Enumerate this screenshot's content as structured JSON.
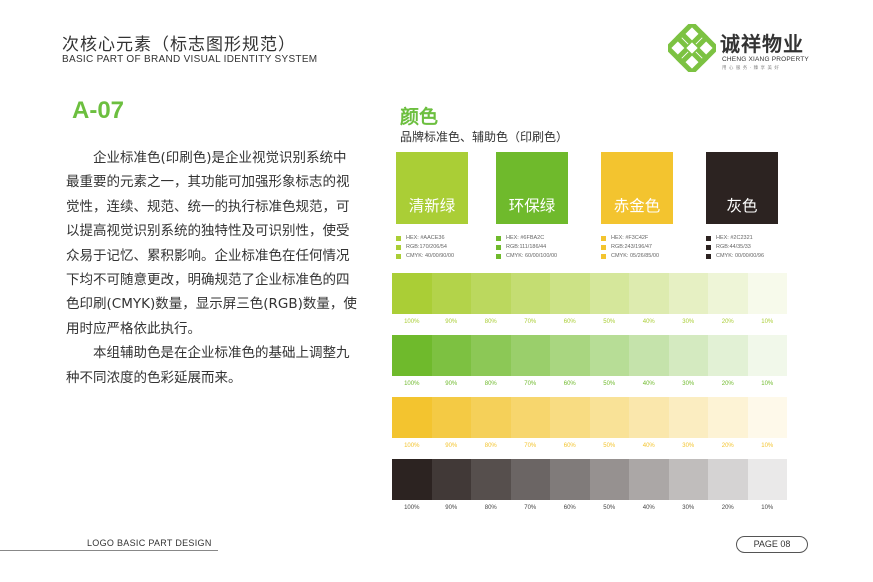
{
  "header": {
    "title": "次核心元素（标志图形规范）",
    "subtitle": "BASIC PART OF BRAND VISUAL IDENTITY SYSTEM"
  },
  "logo": {
    "name_cn": "诚祥物业",
    "name_en": "CHENG XIANG PROPERTY",
    "tagline": "用 心 服 务 · 臻 享 美 好",
    "icon": "brand-knot-icon",
    "color": "#7cc242"
  },
  "code": "A-07",
  "description": [
    "企业标准色(印刷色)是企业视觉识别系统中最重要的元素之一，其功能可加强形象标志的视觉性，连续、规范、统一的执行标准色规范，可以提高视觉识别系统的独特性及可识别性，使受众易于记忆、累积影响。企业标准色在任何情况下均不可随意更改，明确规范了企业标准色的四色印刷(CMYK)数量，显示屏三色(RGB)数量，使用时应严格依此执行。",
    "本组辅助色是在企业标准色的基础上调整九种不同浓度的色彩延展而来。"
  ],
  "section": {
    "title": "颜色",
    "subtitle": "品牌标准色、辅助色（印刷色）"
  },
  "colors": [
    {
      "name": "清新绿",
      "hex": "#AACE36",
      "lines": [
        "HEX: #AACE36",
        "RGB:170/206/54",
        "CMYK: 40/00/90/00"
      ]
    },
    {
      "name": "环保绿",
      "hex": "#6FBA2C",
      "lines": [
        "HEX: #6FBA2C",
        "RGB:111/186/44",
        "CMYK: 60/00/100/00"
      ]
    },
    {
      "name": "赤金色",
      "hex": "#F3C42F",
      "lines": [
        "HEX: #F3C42F",
        "RGB:243/196/47",
        "CMYK: 05/26/85/00"
      ]
    },
    {
      "name": "灰色",
      "hex": "#2C2321",
      "lines": [
        "HEX: #2C2321",
        "RGB:44/35/33",
        "CMYK: 00/00/00/96"
      ]
    }
  ],
  "tints": [
    {
      "color": "#AACE36",
      "labels": [
        "100%",
        "90%",
        "80%",
        "70%",
        "60%",
        "50%",
        "40%",
        "30%",
        "20%",
        "10%"
      ]
    },
    {
      "color": "#6FBA2C",
      "labels": [
        "100%",
        "90%",
        "80%",
        "70%",
        "60%",
        "50%",
        "40%",
        "30%",
        "20%",
        "10%"
      ]
    },
    {
      "color": "#F3C42F",
      "labels": [
        "100%",
        "90%",
        "80%",
        "70%",
        "60%",
        "50%",
        "40%",
        "30%",
        "20%",
        "10%"
      ]
    },
    {
      "color": "#2C2321",
      "labels": [
        "100%",
        "90%",
        "80%",
        "70%",
        "60%",
        "50%",
        "40%",
        "30%",
        "20%",
        "10%"
      ]
    }
  ],
  "tint_levels": [
    1.0,
    0.9,
    0.8,
    0.7,
    0.6,
    0.5,
    0.4,
    0.3,
    0.2,
    0.1
  ],
  "footer": {
    "label": "LOGO BASIC PART DESIGN",
    "page": "PAGE  08"
  }
}
